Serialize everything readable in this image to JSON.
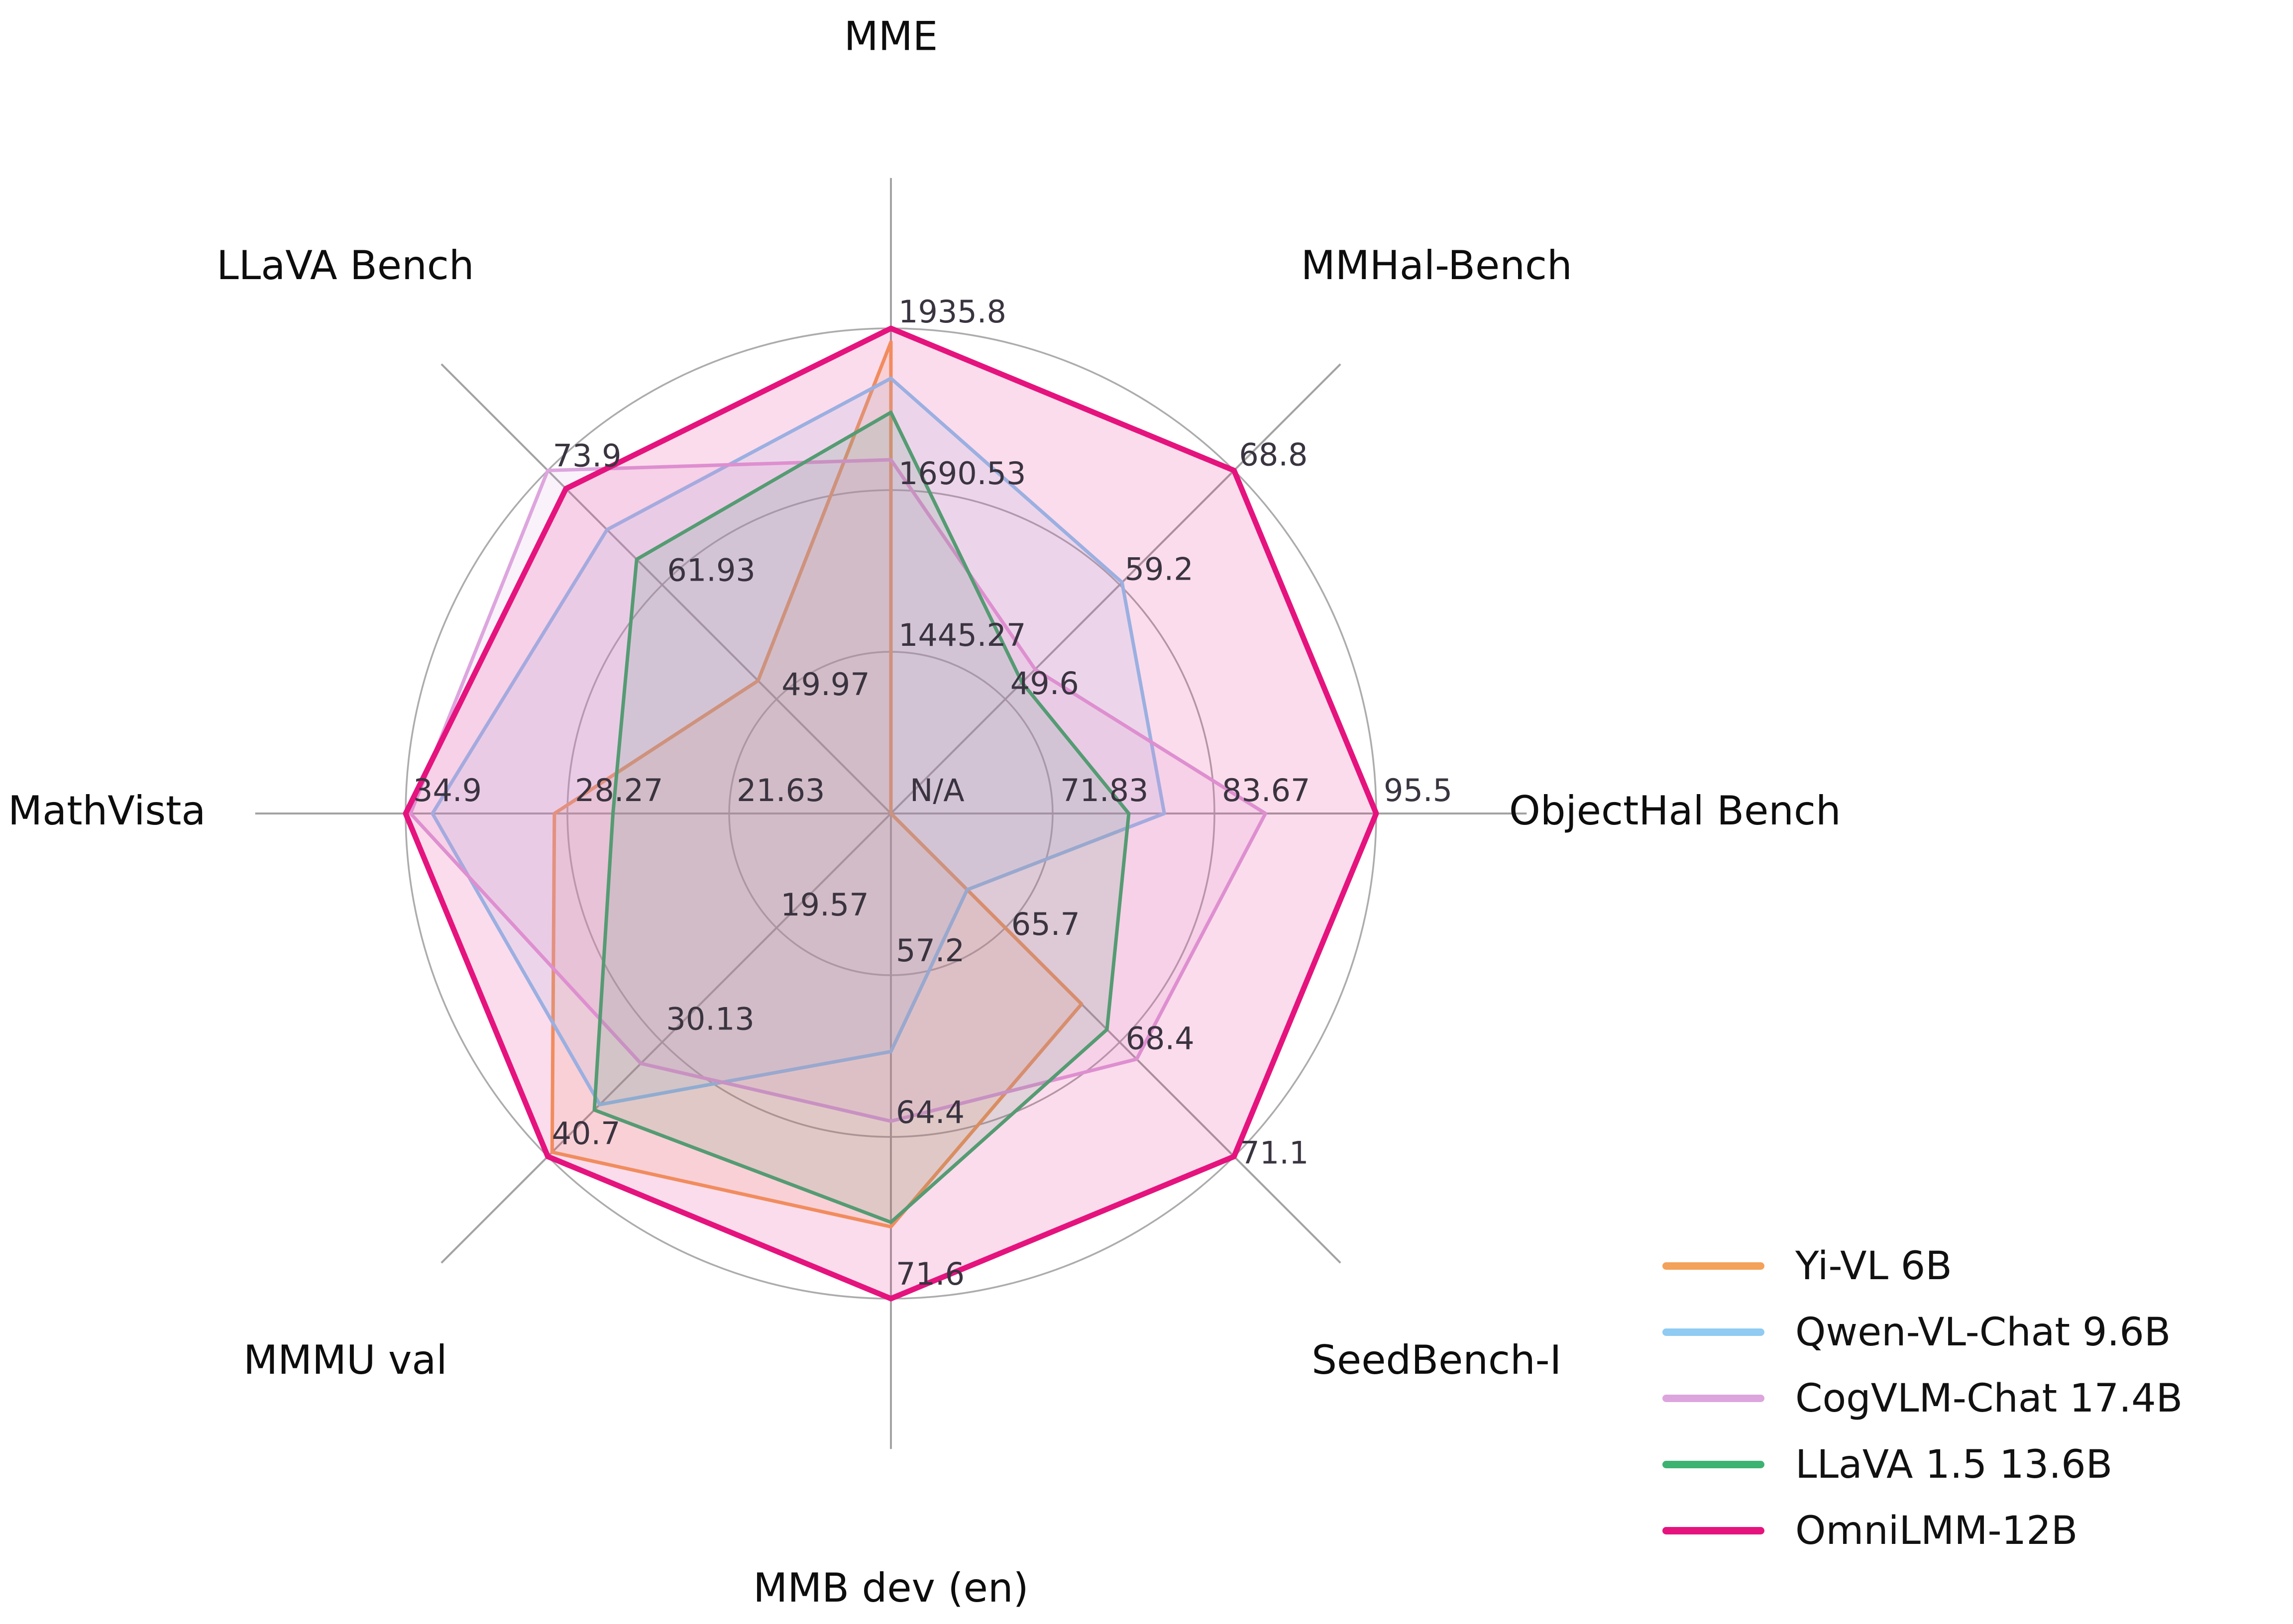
{
  "chart_data": {
    "type": "radar",
    "title": "",
    "grid": {
      "rings": 3,
      "ring_color": "#acacac",
      "spoke_color": "#a3a3a3",
      "grid_on": true
    },
    "legend_position": "bottom-right",
    "axes": [
      {
        "label": "MME",
        "min": 1200,
        "max": 1935.8,
        "tick_labels": [
          "1445.27",
          "1690.53",
          "1935.8"
        ]
      },
      {
        "label": "MMHal-Bench",
        "min": 40,
        "max": 68.8,
        "tick_labels": [
          "49.6",
          "59.2",
          "68.8"
        ]
      },
      {
        "label": "ObjectHal Bench",
        "min": 60,
        "max": 95.5,
        "tick_labels": [
          "71.83",
          "83.67",
          "95.5"
        ],
        "center_tick": "N/A"
      },
      {
        "label": "SeedBench-I",
        "min": 63,
        "max": 71.1,
        "tick_labels": [
          "65.7",
          "68.4",
          "71.1"
        ]
      },
      {
        "label": "MMB dev (en)",
        "min": 50,
        "max": 71.6,
        "tick_labels": [
          "57.2",
          "64.4",
          "71.6"
        ]
      },
      {
        "label": "MMMU val",
        "min": 9,
        "max": 40.7,
        "tick_labels": [
          "19.57",
          "30.13",
          "40.7"
        ]
      },
      {
        "label": "MathVista",
        "min": 15,
        "max": 34.9,
        "tick_labels": [
          "21.63",
          "28.27",
          "34.9"
        ]
      },
      {
        "label": "LLaVA Bench",
        "min": 38,
        "max": 73.9,
        "tick_labels": [
          "49.97",
          "61.93",
          "73.9"
        ]
      }
    ],
    "series": [
      {
        "name": "Yi-VL 6B",
        "color": "#F4A159",
        "line_width": 7,
        "values": [
          1915.1,
          null,
          null,
          67.5,
          68.4,
          40.3,
          28.8,
          51.9
        ]
      },
      {
        "name": "Qwen-VL-Chat 9.6B",
        "color": "#8FCBF2",
        "line_width": 7,
        "values": [
          1860.0,
          59.4,
          80.0,
          64.8,
          60.6,
          35.9,
          33.8,
          67.7
        ]
      },
      {
        "name": "CogVLM-Chat 17.4B",
        "color": "#DDA5DE",
        "line_width": 7,
        "values": [
          1736.6,
          52.1,
          87.4,
          68.8,
          63.7,
          32.1,
          34.7,
          73.9
        ]
      },
      {
        "name": "LLaVA 1.5 13.6B",
        "color": "#3CB371",
        "line_width": 7,
        "values": [
          1808.4,
          51.0,
          77.4,
          68.1,
          68.2,
          36.4,
          26.4,
          64.6
        ]
      },
      {
        "name": "OmniLMM-12B",
        "color": "#E5137E",
        "line_width": 11,
        "values": [
          1935.8,
          68.8,
          95.5,
          71.1,
          71.6,
          40.7,
          34.9,
          72.0
        ]
      }
    ],
    "na_note": "null values are N/A and are plotted at the chart center",
    "fill_opacity": 0.15
  }
}
